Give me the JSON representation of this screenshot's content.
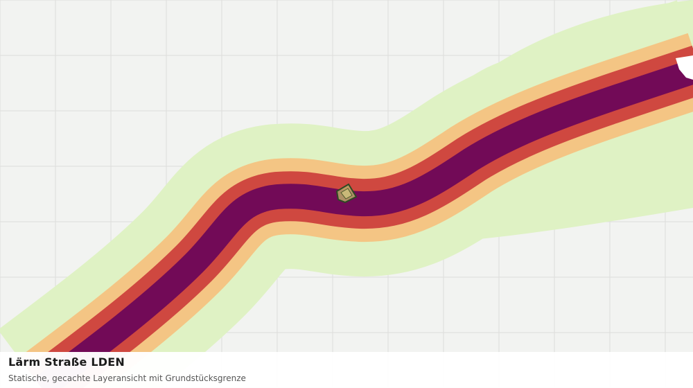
{
  "map": {
    "title": "Lärm Straße LDEN",
    "subtitle": "Statische, gecachte Layeransicht mit Grundstücksgrenze",
    "colors": {
      "background": "#f2f3f1",
      "grid": "#dcdddb",
      "noise_band_1": "#dff2c4",
      "noise_band_2": "#f4c584",
      "noise_band_3": "#cf4840",
      "noise_band_4": "#720a57",
      "parcel_fill": "#b8a868",
      "parcel_stroke": "#2d4a23"
    },
    "layers": [
      {
        "name": "noise-band-1",
        "color_key": "noise_band_1"
      },
      {
        "name": "noise-band-2",
        "color_key": "noise_band_2"
      },
      {
        "name": "noise-band-3",
        "color_key": "noise_band_3"
      },
      {
        "name": "noise-band-4",
        "color_key": "noise_band_4"
      }
    ]
  }
}
